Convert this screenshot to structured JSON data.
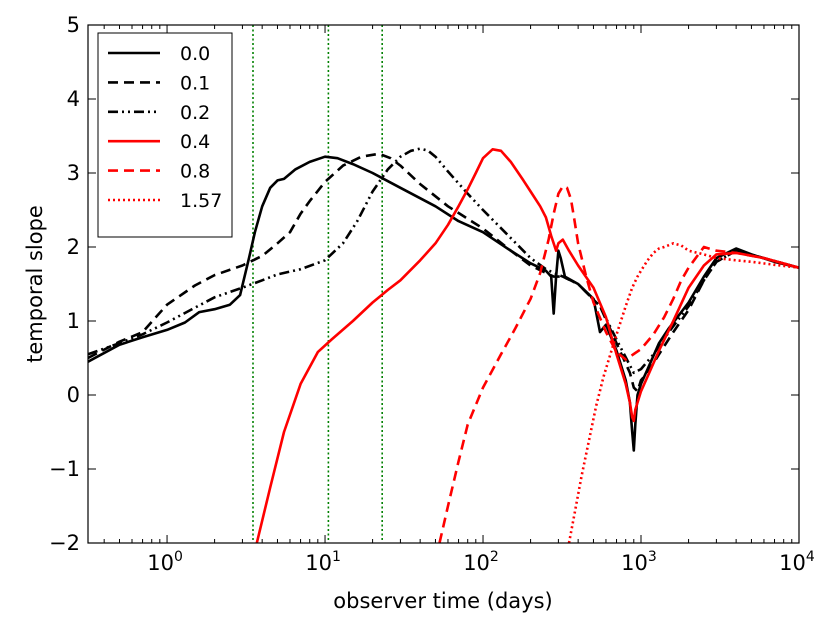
{
  "chart_data": {
    "type": "line",
    "xscale": "log",
    "xlabel": "observer time (days)",
    "ylabel": "temporal slope",
    "xlim": [
      0.316,
      10000
    ],
    "ylim": [
      -2,
      5
    ],
    "x_ticks": [
      {
        "value": 1,
        "base": "10",
        "exp": "0"
      },
      {
        "value": 10,
        "base": "10",
        "exp": "1"
      },
      {
        "value": 100,
        "base": "10",
        "exp": "2"
      },
      {
        "value": 1000,
        "base": "10",
        "exp": "3"
      },
      {
        "value": 10000,
        "base": "10",
        "exp": "4"
      }
    ],
    "y_ticks": [
      {
        "value": -2,
        "label": "−2"
      },
      {
        "value": -1,
        "label": "−1"
      },
      {
        "value": 0,
        "label": "0"
      },
      {
        "value": 1,
        "label": "1"
      },
      {
        "value": 2,
        "label": "2"
      },
      {
        "value": 3,
        "label": "3"
      },
      {
        "value": 4,
        "label": "4"
      },
      {
        "value": 5,
        "label": "5"
      }
    ],
    "vlines": [
      3.5,
      10.5,
      23
    ],
    "vline_color": "#008000",
    "legend_position": "top-left",
    "series": [
      {
        "name": "0.0",
        "color": "#000000",
        "dash": "solid",
        "x": [
          0.316,
          0.5,
          0.7,
          1.0,
          1.3,
          1.6,
          2.0,
          2.5,
          2.9,
          3.3,
          3.6,
          4.0,
          4.5,
          5.0,
          5.5,
          6.5,
          8,
          10,
          12,
          15,
          20,
          30,
          50,
          70,
          100,
          150,
          200,
          250,
          270,
          280,
          290,
          300,
          310,
          330,
          400,
          500,
          550,
          600,
          700,
          800,
          850,
          880,
          900,
          920,
          950,
          1000,
          1100,
          1300,
          1500,
          2000,
          2500,
          3000,
          4000,
          5000,
          7000,
          10000
        ],
        "y": [
          0.45,
          0.68,
          0.78,
          0.88,
          0.98,
          1.12,
          1.16,
          1.22,
          1.35,
          1.85,
          2.2,
          2.55,
          2.8,
          2.9,
          2.92,
          3.05,
          3.15,
          3.22,
          3.2,
          3.12,
          3.0,
          2.8,
          2.55,
          2.35,
          2.2,
          1.95,
          1.78,
          1.68,
          1.6,
          1.1,
          1.6,
          1.95,
          1.85,
          1.6,
          1.5,
          1.3,
          0.85,
          0.95,
          0.6,
          0.2,
          -0.1,
          -0.5,
          -0.75,
          -0.4,
          0.0,
          0.15,
          0.35,
          0.7,
          0.9,
          1.25,
          1.6,
          1.85,
          1.98,
          1.9,
          1.8,
          1.72
        ]
      },
      {
        "name": "0.1",
        "color": "#000000",
        "dash": "10,6",
        "x": [
          0.316,
          0.5,
          0.7,
          1.0,
          1.5,
          2.0,
          3.0,
          4.0,
          5.0,
          6.0,
          7.0,
          8.0,
          10,
          13,
          17,
          22,
          26,
          30,
          40,
          60,
          100,
          150,
          200,
          250,
          280,
          320,
          400,
          550,
          700,
          850,
          900,
          950,
          1000,
          1100,
          1300,
          1600,
          2000,
          2500,
          3000,
          4000,
          6000,
          10000
        ],
        "y": [
          0.5,
          0.72,
          0.85,
          1.22,
          1.48,
          1.62,
          1.75,
          1.88,
          2.05,
          2.2,
          2.45,
          2.62,
          2.88,
          3.1,
          3.22,
          3.26,
          3.2,
          3.1,
          2.85,
          2.55,
          2.25,
          1.95,
          1.75,
          1.65,
          1.6,
          1.6,
          1.5,
          1.2,
          0.7,
          0.3,
          0.1,
          0.05,
          0.2,
          0.3,
          0.55,
          0.85,
          1.15,
          1.55,
          1.8,
          1.95,
          1.85,
          1.72
        ]
      },
      {
        "name": "0.2",
        "color": "#000000",
        "dash": "10,4,2,4,2,4",
        "x": [
          0.316,
          0.5,
          0.7,
          1.0,
          1.5,
          2.0,
          3.0,
          4.0,
          5.0,
          7.0,
          10,
          13,
          16,
          20,
          25,
          30,
          35,
          40,
          45,
          50,
          60,
          80,
          100,
          150,
          200,
          250,
          280,
          320,
          400,
          550,
          700,
          850,
          900,
          1000,
          1200,
          1500,
          2000,
          2500,
          3000,
          4000,
          6000,
          10000
        ],
        "y": [
          0.55,
          0.7,
          0.82,
          0.98,
          1.18,
          1.32,
          1.45,
          1.55,
          1.63,
          1.7,
          1.82,
          2.05,
          2.35,
          2.75,
          3.05,
          3.22,
          3.3,
          3.33,
          3.3,
          3.22,
          3.02,
          2.72,
          2.5,
          2.12,
          1.85,
          1.7,
          1.65,
          1.6,
          1.5,
          1.2,
          0.75,
          0.4,
          0.3,
          0.35,
          0.55,
          0.85,
          1.2,
          1.55,
          1.8,
          1.95,
          1.85,
          1.72
        ]
      },
      {
        "name": "0.4",
        "color": "#ff0000",
        "dash": "solid",
        "x": [
          3.7,
          4.5,
          5.5,
          7.0,
          9.0,
          11,
          15,
          20,
          25,
          30,
          40,
          50,
          60,
          70,
          80,
          90,
          100,
          115,
          130,
          150,
          180,
          200,
          230,
          250,
          270,
          290,
          300,
          320,
          350,
          400,
          500,
          600,
          700,
          800,
          850,
          880,
          900,
          920,
          1000,
          1100,
          1300,
          1600,
          2000,
          2500,
          3000,
          4000,
          6000,
          10000
        ],
        "y": [
          -2.0,
          -1.25,
          -0.5,
          0.15,
          0.58,
          0.75,
          1.0,
          1.25,
          1.42,
          1.55,
          1.82,
          2.05,
          2.3,
          2.55,
          2.78,
          3.0,
          3.2,
          3.32,
          3.3,
          3.15,
          2.9,
          2.75,
          2.55,
          2.4,
          2.15,
          1.95,
          2.05,
          2.1,
          1.95,
          1.75,
          1.45,
          1.05,
          0.55,
          0.15,
          -0.1,
          -0.3,
          -0.35,
          -0.2,
          0.05,
          0.25,
          0.6,
          1.0,
          1.45,
          1.75,
          1.9,
          1.92,
          1.85,
          1.72
        ]
      },
      {
        "name": "0.8",
        "color": "#ff0000",
        "dash": "10,6",
        "x": [
          53,
          60,
          70,
          80,
          100,
          130,
          160,
          200,
          230,
          260,
          280,
          300,
          320,
          340,
          360,
          380,
          400,
          450,
          500,
          600,
          700,
          800,
          1000,
          1200,
          1400,
          1600,
          1800,
          2000,
          2500,
          3000,
          4000,
          6000,
          10000
        ],
        "y": [
          -2.0,
          -1.5,
          -0.9,
          -0.4,
          0.1,
          0.55,
          0.9,
          1.3,
          1.65,
          2.1,
          2.45,
          2.72,
          2.82,
          2.8,
          2.65,
          2.35,
          2.05,
          1.6,
          1.25,
          0.85,
          0.58,
          0.48,
          0.62,
          0.82,
          1.05,
          1.3,
          1.55,
          1.72,
          2.0,
          1.95,
          1.92,
          1.85,
          1.72
        ]
      },
      {
        "name": "1.57",
        "color": "#ff0000",
        "dash": "2,3",
        "x": [
          350,
          380,
          420,
          470,
          520,
          580,
          650,
          720,
          800,
          880,
          950,
          1000,
          1100,
          1200,
          1300,
          1400,
          1600,
          1800,
          2000,
          2500,
          3000,
          4000,
          5000,
          7000,
          10000
        ],
        "y": [
          -2.0,
          -1.6,
          -1.1,
          -0.6,
          -0.15,
          0.25,
          0.6,
          0.9,
          1.2,
          1.45,
          1.6,
          1.68,
          1.82,
          1.92,
          1.98,
          2.0,
          2.05,
          2.02,
          1.95,
          1.9,
          1.85,
          1.82,
          1.8,
          1.76,
          1.72
        ]
      }
    ]
  }
}
